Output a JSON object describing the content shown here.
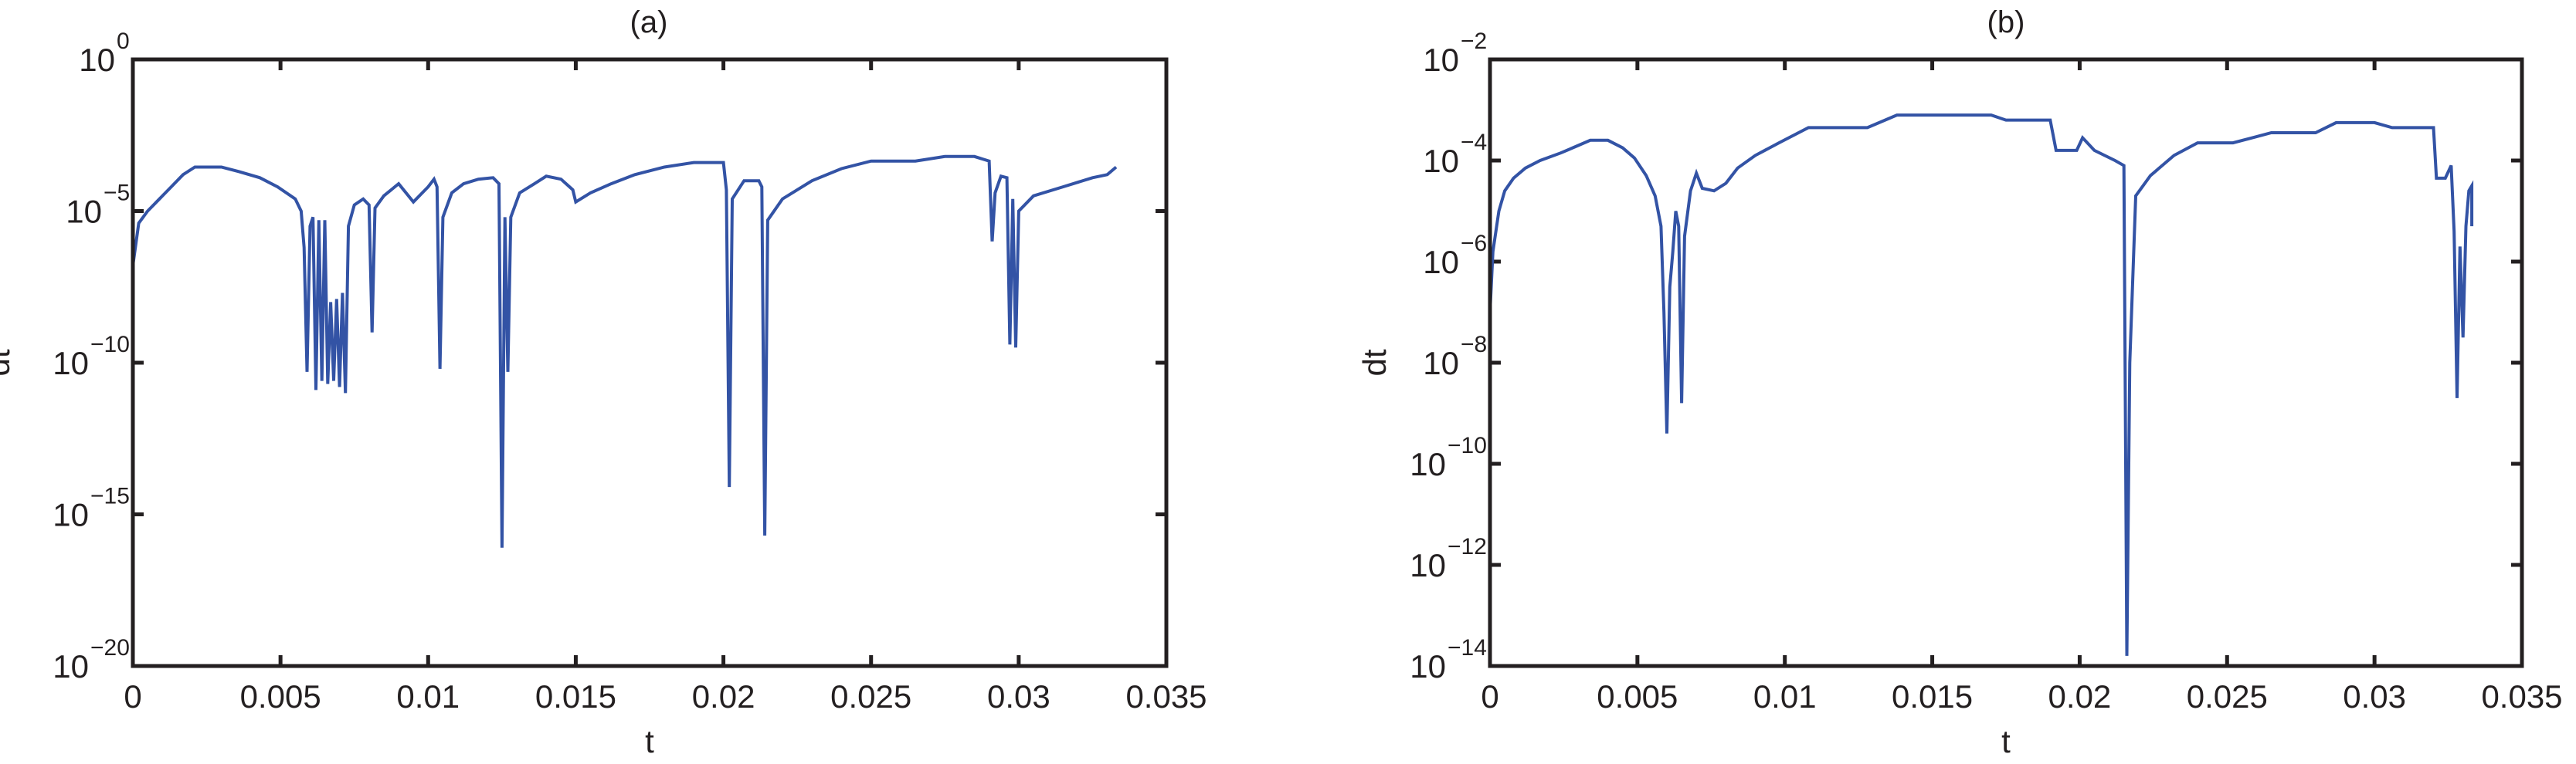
{
  "chart_data": [
    {
      "id": "a",
      "type": "line",
      "title": "(a)",
      "xlabel": "t",
      "ylabel": "dt",
      "yscale": "log",
      "xlim": [
        0,
        0.035
      ],
      "ylim": [
        1e-20,
        1
      ],
      "grid": false,
      "x_ticks": [
        0,
        0.005,
        0.01,
        0.015,
        0.02,
        0.025,
        0.03,
        0.035
      ],
      "x_tick_labels": [
        "0",
        "0.005",
        "0.01",
        "0.015",
        "0.02",
        "0.025",
        "0.03",
        "0.035"
      ],
      "y_tick_exponents": [
        0,
        -5,
        -10,
        -15,
        -20
      ],
      "y_tick_base": "10",
      "y_tick_sup_labels": [
        "0",
        "−5",
        "−10",
        "−15",
        "−20"
      ],
      "series": [
        {
          "name": "dt",
          "color": "#3353a5",
          "value_encoding": "[t, log10(dt)]",
          "points": [
            [
              0.0,
              -6.8
            ],
            [
              0.0002,
              -5.4
            ],
            [
              0.0005,
              -5.0
            ],
            [
              0.0009,
              -4.6
            ],
            [
              0.0013,
              -4.2
            ],
            [
              0.0017,
              -3.8
            ],
            [
              0.0021,
              -3.55
            ],
            [
              0.003,
              -3.55
            ],
            [
              0.0036,
              -3.7
            ],
            [
              0.0043,
              -3.9
            ],
            [
              0.0049,
              -4.2
            ],
            [
              0.0055,
              -4.6
            ],
            [
              0.0057,
              -5.0
            ],
            [
              0.0058,
              -6.2
            ],
            [
              0.0059,
              -10.3
            ],
            [
              0.006,
              -5.5
            ],
            [
              0.0061,
              -5.2
            ],
            [
              0.0062,
              -10.9
            ],
            [
              0.0063,
              -5.3
            ],
            [
              0.0064,
              -10.6
            ],
            [
              0.0065,
              -5.3
            ],
            [
              0.0066,
              -10.7
            ],
            [
              0.0067,
              -8.0
            ],
            [
              0.0068,
              -10.6
            ],
            [
              0.0069,
              -7.9
            ],
            [
              0.007,
              -10.8
            ],
            [
              0.0071,
              -7.7
            ],
            [
              0.0072,
              -11.0
            ],
            [
              0.0073,
              -5.5
            ],
            [
              0.0075,
              -4.8
            ],
            [
              0.0078,
              -4.6
            ],
            [
              0.008,
              -4.8
            ],
            [
              0.0081,
              -9.0
            ],
            [
              0.0082,
              -4.9
            ],
            [
              0.0085,
              -4.5
            ],
            [
              0.009,
              -4.1
            ],
            [
              0.0095,
              -4.7
            ],
            [
              0.01,
              -4.2
            ],
            [
              0.0102,
              -3.95
            ],
            [
              0.0103,
              -4.2
            ],
            [
              0.0104,
              -10.2
            ],
            [
              0.0105,
              -5.2
            ],
            [
              0.0108,
              -4.4
            ],
            [
              0.0112,
              -4.1
            ],
            [
              0.0117,
              -3.95
            ],
            [
              0.0122,
              -3.9
            ],
            [
              0.0124,
              -4.1
            ],
            [
              0.0125,
              -16.1
            ],
            [
              0.0126,
              -5.2
            ],
            [
              0.0127,
              -10.3
            ],
            [
              0.0128,
              -5.2
            ],
            [
              0.0131,
              -4.4
            ],
            [
              0.0136,
              -4.1
            ],
            [
              0.014,
              -3.85
            ],
            [
              0.0145,
              -3.95
            ],
            [
              0.0149,
              -4.3
            ],
            [
              0.015,
              -4.7
            ],
            [
              0.0155,
              -4.4
            ],
            [
              0.0162,
              -4.1
            ],
            [
              0.017,
              -3.8
            ],
            [
              0.018,
              -3.55
            ],
            [
              0.019,
              -3.4
            ],
            [
              0.02,
              -3.4
            ],
            [
              0.0201,
              -4.3
            ],
            [
              0.0202,
              -14.1
            ],
            [
              0.0203,
              -4.6
            ],
            [
              0.0207,
              -4.0
            ],
            [
              0.0212,
              -4.0
            ],
            [
              0.0213,
              -4.2
            ],
            [
              0.0214,
              -15.7
            ],
            [
              0.0215,
              -5.3
            ],
            [
              0.022,
              -4.6
            ],
            [
              0.023,
              -4.0
            ],
            [
              0.024,
              -3.6
            ],
            [
              0.025,
              -3.35
            ],
            [
              0.0265,
              -3.35
            ],
            [
              0.0275,
              -3.2
            ],
            [
              0.0285,
              -3.2
            ],
            [
              0.029,
              -3.35
            ],
            [
              0.0291,
              -6.0
            ],
            [
              0.0292,
              -4.4
            ],
            [
              0.0294,
              -3.85
            ],
            [
              0.0296,
              -3.9
            ],
            [
              0.0297,
              -9.4
            ],
            [
              0.0298,
              -4.6
            ],
            [
              0.0299,
              -9.5
            ],
            [
              0.03,
              -5.0
            ],
            [
              0.0305,
              -4.5
            ],
            [
              0.0315,
              -4.2
            ],
            [
              0.0325,
              -3.9
            ],
            [
              0.033,
              -3.8
            ],
            [
              0.0333,
              -3.55
            ]
          ]
        }
      ]
    },
    {
      "id": "b",
      "type": "line",
      "title": "(b)",
      "xlabel": "t",
      "ylabel": "dt",
      "yscale": "log",
      "xlim": [
        0,
        0.035
      ],
      "ylim": [
        1e-14,
        0.01
      ],
      "grid": false,
      "x_ticks": [
        0,
        0.005,
        0.01,
        0.015,
        0.02,
        0.025,
        0.03,
        0.035
      ],
      "x_tick_labels": [
        "0",
        "0.005",
        "0.01",
        "0.015",
        "0.02",
        "0.025",
        "0.03",
        "0.035"
      ],
      "y_tick_exponents": [
        -2,
        -4,
        -6,
        -8,
        -10,
        -12,
        -14
      ],
      "y_tick_base": "10",
      "y_tick_sup_labels": [
        "−2",
        "−4",
        "−6",
        "−8",
        "−10",
        "−12",
        "−14"
      ],
      "series": [
        {
          "name": "dt",
          "color": "#3353a5",
          "value_encoding": "[t, log10(dt)]",
          "points": [
            [
              0.0,
              -7.0
            ],
            [
              0.0001,
              -5.8
            ],
            [
              0.0003,
              -5.0
            ],
            [
              0.0005,
              -4.6
            ],
            [
              0.0008,
              -4.35
            ],
            [
              0.0012,
              -4.15
            ],
            [
              0.0017,
              -4.0
            ],
            [
              0.0024,
              -3.85
            ],
            [
              0.003,
              -3.7
            ],
            [
              0.0034,
              -3.6
            ],
            [
              0.004,
              -3.6
            ],
            [
              0.0045,
              -3.75
            ],
            [
              0.0049,
              -3.95
            ],
            [
              0.0053,
              -4.3
            ],
            [
              0.0056,
              -4.7
            ],
            [
              0.0058,
              -5.3
            ],
            [
              0.0059,
              -7.0
            ],
            [
              0.006,
              -9.4
            ],
            [
              0.0061,
              -6.5
            ],
            [
              0.0062,
              -5.8
            ],
            [
              0.0063,
              -5.0
            ],
            [
              0.0064,
              -5.3
            ],
            [
              0.0065,
              -8.8
            ],
            [
              0.0066,
              -5.5
            ],
            [
              0.0068,
              -4.6
            ],
            [
              0.007,
              -4.25
            ],
            [
              0.0072,
              -4.55
            ],
            [
              0.0076,
              -4.6
            ],
            [
              0.008,
              -4.45
            ],
            [
              0.0084,
              -4.15
            ],
            [
              0.009,
              -3.9
            ],
            [
              0.0098,
              -3.65
            ],
            [
              0.0108,
              -3.35
            ],
            [
              0.0118,
              -3.35
            ],
            [
              0.0128,
              -3.35
            ],
            [
              0.0138,
              -3.1
            ],
            [
              0.017,
              -3.1
            ],
            [
              0.0175,
              -3.2
            ],
            [
              0.019,
              -3.2
            ],
            [
              0.0192,
              -3.8
            ],
            [
              0.0199,
              -3.8
            ],
            [
              0.0201,
              -3.55
            ],
            [
              0.0205,
              -3.8
            ],
            [
              0.0212,
              -4.0
            ],
            [
              0.0215,
              -4.1
            ],
            [
              0.0216,
              -13.8
            ],
            [
              0.0217,
              -8.0
            ],
            [
              0.0219,
              -4.7
            ],
            [
              0.0224,
              -4.3
            ],
            [
              0.0232,
              -3.9
            ],
            [
              0.024,
              -3.65
            ],
            [
              0.0252,
              -3.65
            ],
            [
              0.0265,
              -3.45
            ],
            [
              0.028,
              -3.45
            ],
            [
              0.0287,
              -3.25
            ],
            [
              0.03,
              -3.25
            ],
            [
              0.0306,
              -3.35
            ],
            [
              0.032,
              -3.35
            ],
            [
              0.0321,
              -4.35
            ],
            [
              0.0324,
              -4.35
            ],
            [
              0.0326,
              -4.1
            ],
            [
              0.0327,
              -5.4
            ],
            [
              0.0328,
              -8.7
            ],
            [
              0.0329,
              -5.7
            ],
            [
              0.033,
              -7.5
            ],
            [
              0.0331,
              -5.3
            ],
            [
              0.0332,
              -4.6
            ],
            [
              0.0333,
              -4.5
            ],
            [
              0.0333,
              -5.3
            ]
          ]
        }
      ]
    }
  ]
}
